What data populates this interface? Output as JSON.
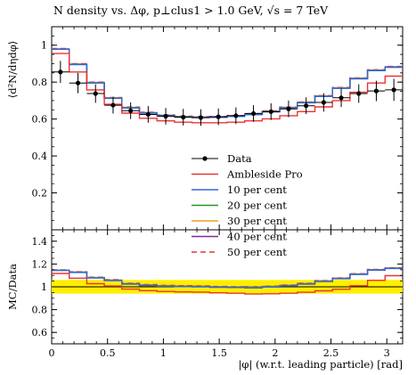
{
  "chart_data": {
    "type": "line",
    "title": "N density vs. Δφ, p⊥clus1 > 1.0 GeV, √s = 7 TeV",
    "xlabel": "|φ| (w.r.t. leading particle) [rad]",
    "ylabel_main": "⟨d²N/dηdφ⟩",
    "ylabel_ratio": "MC/Data",
    "xlim": [
      0,
      3.1416
    ],
    "ylim_main": [
      0,
      1.1
    ],
    "ylim_ratio": [
      0.5,
      1.5
    ],
    "x_ticks": [
      "0",
      "0.5",
      "1",
      "1.5",
      "2",
      "2.5",
      "3"
    ],
    "y_ticks_main": [
      "0.2",
      "0.4",
      "0.6",
      "0.8",
      "1"
    ],
    "y_ticks_ratio": [
      "0.6",
      "0.8",
      "1",
      "1.2",
      "1.4"
    ],
    "bin_edges": [
      0,
      0.1571,
      0.3142,
      0.4712,
      0.6283,
      0.7854,
      0.9425,
      1.0996,
      1.2566,
      1.4137,
      1.5708,
      1.7279,
      1.885,
      2.042,
      2.1991,
      2.3562,
      2.5133,
      2.6704,
      2.8274,
      2.9845,
      3.1416
    ],
    "data": {
      "name": "Data",
      "color": "#000000",
      "values": [
        0.855,
        0.795,
        0.738,
        0.675,
        0.645,
        0.625,
        0.615,
        0.61,
        0.608,
        0.612,
        0.618,
        0.63,
        0.64,
        0.655,
        0.672,
        0.69,
        0.715,
        0.738,
        0.752,
        0.758
      ],
      "errors": [
        0.06,
        0.055,
        0.05,
        0.045,
        0.045,
        0.045,
        0.045,
        0.045,
        0.045,
        0.045,
        0.045,
        0.045,
        0.045,
        0.045,
        0.045,
        0.05,
        0.05,
        0.05,
        0.055,
        0.06
      ],
      "ratio_band": [
        0.94,
        1.06
      ]
    },
    "series": [
      {
        "name": "Ambleside Pro",
        "color": "#ee3333",
        "dash": "",
        "values": [
          0.955,
          0.855,
          0.758,
          0.68,
          0.632,
          0.604,
          0.59,
          0.583,
          0.58,
          0.58,
          0.583,
          0.59,
          0.601,
          0.618,
          0.64,
          0.666,
          0.7,
          0.745,
          0.795,
          0.832
        ]
      },
      {
        "name": "10 per cent",
        "color": "#3366dd",
        "dash": "",
        "values": [
          0.978,
          0.895,
          0.795,
          0.712,
          0.66,
          0.632,
          0.618,
          0.611,
          0.608,
          0.609,
          0.614,
          0.624,
          0.639,
          0.66,
          0.688,
          0.722,
          0.766,
          0.818,
          0.862,
          0.88
        ]
      },
      {
        "name": "20 per cent",
        "color": "#229922",
        "dash": "",
        "values": [
          0.978,
          0.896,
          0.796,
          0.713,
          0.661,
          0.633,
          0.619,
          0.612,
          0.609,
          0.61,
          0.615,
          0.625,
          0.64,
          0.661,
          0.689,
          0.723,
          0.767,
          0.819,
          0.863,
          0.881
        ]
      },
      {
        "name": "30 per cent",
        "color": "#f0a020",
        "dash": "",
        "values": [
          0.979,
          0.897,
          0.797,
          0.714,
          0.662,
          0.634,
          0.62,
          0.613,
          0.61,
          0.611,
          0.616,
          0.626,
          0.641,
          0.662,
          0.69,
          0.724,
          0.768,
          0.82,
          0.864,
          0.882
        ]
      },
      {
        "name": "40 per cent",
        "color": "#882299",
        "dash": "",
        "values": [
          0.98,
          0.898,
          0.798,
          0.715,
          0.663,
          0.635,
          0.621,
          0.614,
          0.611,
          0.612,
          0.617,
          0.627,
          0.642,
          0.663,
          0.691,
          0.725,
          0.769,
          0.821,
          0.865,
          0.883
        ]
      },
      {
        "name": "50 per cent",
        "color": "#ee3333",
        "dash": "6,4",
        "values": [
          0.982,
          0.9,
          0.8,
          0.717,
          0.665,
          0.637,
          0.623,
          0.616,
          0.613,
          0.614,
          0.619,
          0.629,
          0.644,
          0.665,
          0.693,
          0.727,
          0.771,
          0.823,
          0.867,
          0.885
        ]
      }
    ]
  }
}
